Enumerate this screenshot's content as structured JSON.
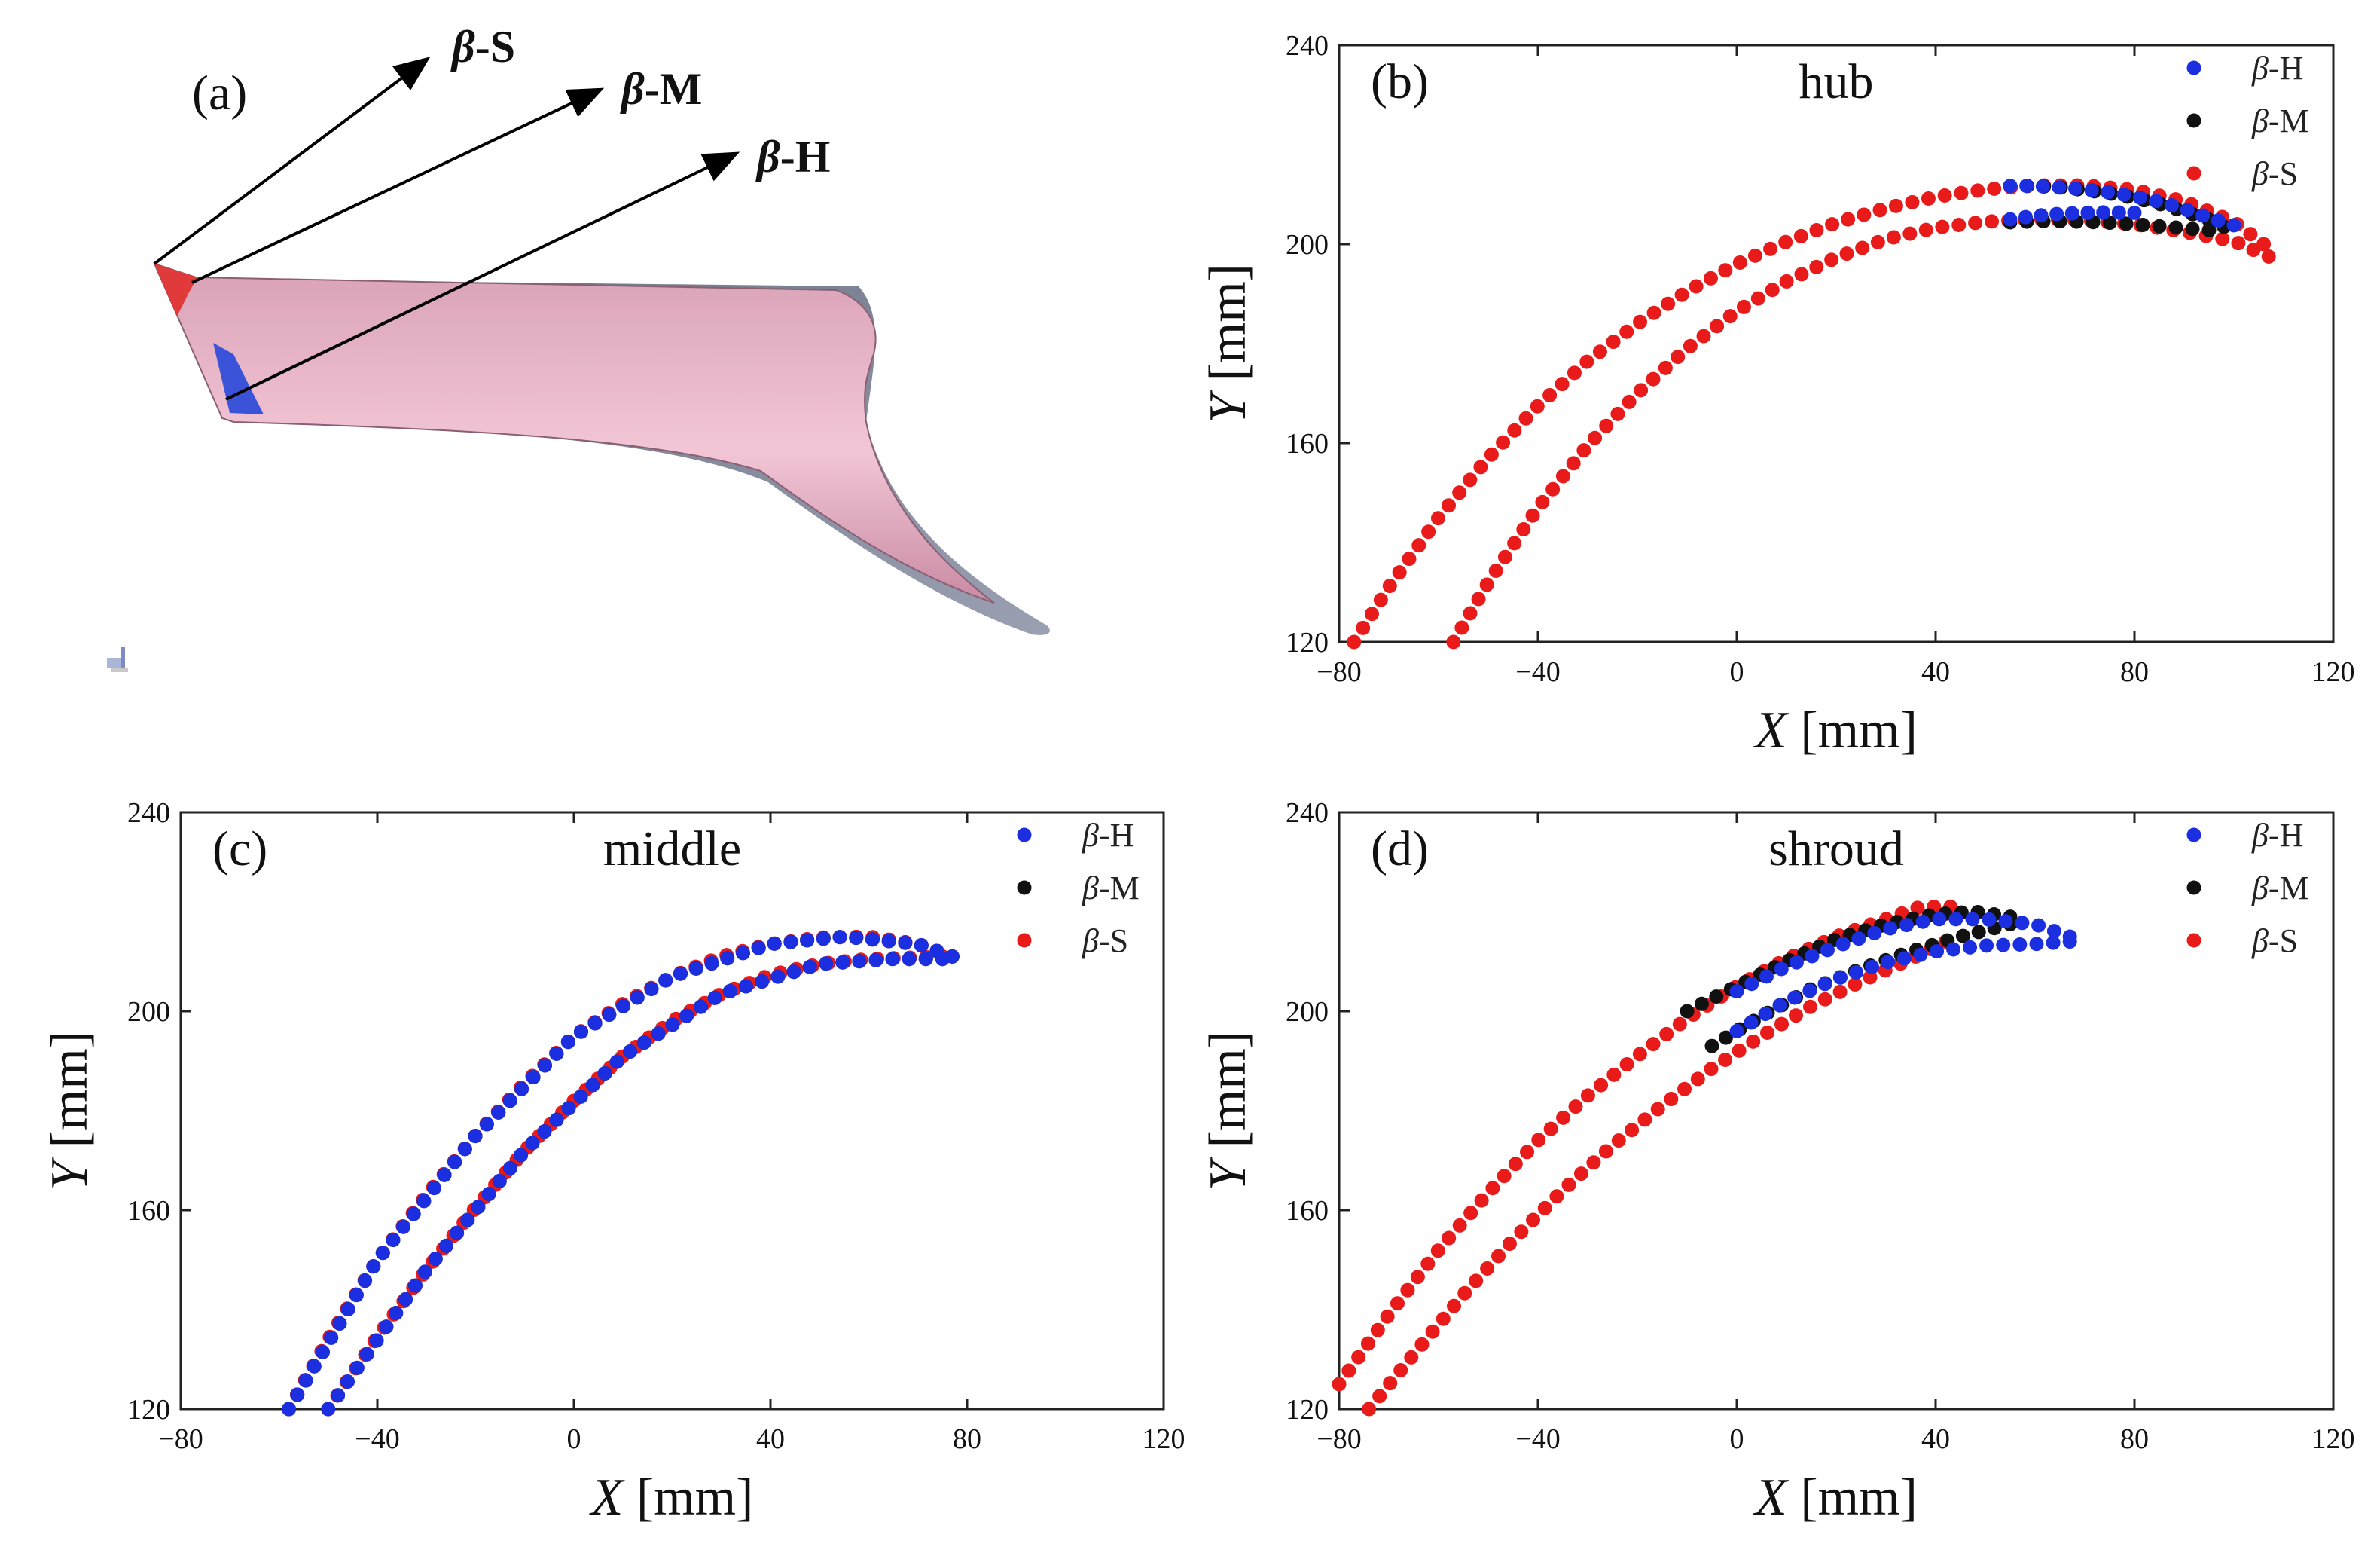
{
  "figure": {
    "panel_a": {
      "label": "(a)",
      "arrows": [
        {
          "greek": "β",
          "suffix": "-S"
        },
        {
          "greek": "β",
          "suffix": "-M"
        },
        {
          "greek": "β",
          "suffix": "-H"
        }
      ]
    }
  },
  "colors": {
    "H": "#1c2fe0",
    "M": "#111111",
    "S": "#e81a1a"
  },
  "chart_data": [
    {
      "type": "scatter",
      "panel": "(b)",
      "title": "hub",
      "xlabel": {
        "var": "X",
        "unit": " [mm]"
      },
      "ylabel": {
        "var": "Y",
        "unit": " [mm]"
      },
      "xlim": [
        -80,
        120
      ],
      "ylim": [
        120,
        240
      ],
      "xticks": [
        "−80",
        "−40",
        "0",
        "40",
        "80",
        "120"
      ],
      "yticks": [
        "120",
        "160",
        "200",
        "240"
      ],
      "legend_position": "top-right",
      "series": [
        {
          "name": "H",
          "greek": "β",
          "suffix": "-H",
          "color": "#1c2fe0",
          "suction": [
            [
              55,
              211.7
            ],
            [
              60,
              211.7
            ],
            [
              65,
              211.4
            ],
            [
              70,
              211.0
            ],
            [
              75,
              210.4
            ],
            [
              80,
              209.6
            ],
            [
              85,
              208.5
            ],
            [
              90,
              207.1
            ],
            [
              95,
              205.3
            ],
            [
              100,
              203.8
            ]
          ],
          "pressure": [
            [
              55,
              205.0
            ],
            [
              60,
              205.7
            ],
            [
              65,
              206.1
            ],
            [
              70,
              206.3
            ],
            [
              75,
              206.4
            ],
            [
              80,
              206.3
            ]
          ]
        },
        {
          "name": "M",
          "greek": "β",
          "suffix": "-M",
          "color": "#111111",
          "suction": [
            [
              55,
              211.7
            ],
            [
              60,
              211.7
            ],
            [
              65,
              211.4
            ],
            [
              70,
              210.9
            ],
            [
              75,
              210.2
            ],
            [
              80,
              209.3
            ],
            [
              85,
              208.1
            ],
            [
              90,
              206.6
            ],
            [
              95,
              204.9
            ],
            [
              98,
              203.5
            ]
          ],
          "pressure": [
            [
              55,
              204.4
            ],
            [
              60,
              204.6
            ],
            [
              65,
              204.6
            ],
            [
              70,
              204.5
            ],
            [
              75,
              204.3
            ],
            [
              80,
              204.0
            ],
            [
              85,
              203.6
            ],
            [
              90,
              203.2
            ],
            [
              95,
              202.8
            ]
          ]
        },
        {
          "name": "S",
          "greek": "β",
          "suffix": "-S",
          "color": "#e81a1a",
          "suction": [
            [
              -77,
              120
            ],
            [
              -70,
              131
            ],
            [
              -60,
              145
            ],
            [
              -50,
              157
            ],
            [
              -40,
              167.5
            ],
            [
              -30,
              176.5
            ],
            [
              -20,
              184
            ],
            [
              -10,
              190.5
            ],
            [
              0,
              196
            ],
            [
              10,
              200.5
            ],
            [
              20,
              204.3
            ],
            [
              30,
              207.2
            ],
            [
              40,
              209.5
            ],
            [
              50,
              211.0
            ],
            [
              60,
              211.8
            ],
            [
              70,
              211.8
            ],
            [
              80,
              210.9
            ],
            [
              90,
              208.6
            ],
            [
              100,
              204.5
            ],
            [
              106,
              200.0
            ]
          ],
          "pressure": [
            [
              -57,
              120
            ],
            [
              -50,
              132
            ],
            [
              -40,
              147
            ],
            [
              -30,
              159.5
            ],
            [
              -20,
              170
            ],
            [
              -10,
              179
            ],
            [
              0,
              186.5
            ],
            [
              10,
              192.5
            ],
            [
              20,
              197.3
            ],
            [
              30,
              201.0
            ],
            [
              40,
              203.3
            ],
            [
              50,
              204.5
            ],
            [
              60,
              205.0
            ],
            [
              70,
              204.8
            ],
            [
              80,
              204.0
            ],
            [
              90,
              202.5
            ],
            [
              100,
              200.6
            ],
            [
              107,
              197.5
            ]
          ]
        }
      ]
    },
    {
      "type": "scatter",
      "panel": "(c)",
      "title": "middle",
      "xlabel": {
        "var": "X",
        "unit": " [mm]"
      },
      "ylabel": {
        "var": "Y",
        "unit": " [mm]"
      },
      "xlim": [
        -80,
        120
      ],
      "ylim": [
        120,
        240
      ],
      "xticks": [
        "−80",
        "−40",
        "0",
        "40",
        "80",
        "120"
      ],
      "yticks": [
        "120",
        "160",
        "200",
        "240"
      ],
      "legend_position": "top-right",
      "series": [
        {
          "name": "H",
          "greek": "β",
          "suffix": "-H",
          "color": "#1c2fe0",
          "suction": [
            [
              -58,
              120
            ],
            [
              -40,
              150
            ],
            [
              -20,
              175
            ],
            [
              0,
              195
            ],
            [
              20,
              207
            ],
            [
              40,
              213.5
            ],
            [
              55,
              215
            ],
            [
              70,
              213.5
            ],
            [
              77,
              211
            ]
          ],
          "pressure": [
            [
              -50,
              120
            ],
            [
              -30,
              148
            ],
            [
              -10,
              172
            ],
            [
              10,
              191
            ],
            [
              30,
              203.5
            ],
            [
              50,
              209.5
            ],
            [
              65,
              210.5
            ],
            [
              75,
              210.5
            ]
          ]
        },
        {
          "name": "M",
          "greek": "β",
          "suffix": "-M",
          "color": "#111111",
          "suction": [
            [
              -58,
              120
            ],
            [
              -40,
              150
            ],
            [
              -20,
              175
            ],
            [
              0,
              195
            ],
            [
              20,
              207
            ],
            [
              40,
              213.5
            ],
            [
              55,
              215
            ],
            [
              70,
              213.5
            ],
            [
              77,
              211
            ]
          ],
          "pressure": [
            [
              -50,
              120
            ],
            [
              -30,
              148
            ],
            [
              -10,
              172
            ],
            [
              10,
              191
            ],
            [
              30,
              203.5
            ],
            [
              50,
              209.5
            ],
            [
              65,
              210.5
            ],
            [
              75,
              210.5
            ]
          ]
        },
        {
          "name": "S",
          "greek": "β",
          "suffix": "-S",
          "color": "#e81a1a",
          "suction": [
            [
              -58,
              120
            ],
            [
              -50,
              134
            ],
            [
              -40,
              150
            ],
            [
              -30,
              163
            ],
            [
              -20,
              175
            ],
            [
              -10,
              185.5
            ],
            [
              0,
              195
            ],
            [
              10,
              201.5
            ],
            [
              20,
              207
            ],
            [
              30,
              211
            ],
            [
              40,
              213.5
            ],
            [
              50,
              214.8
            ],
            [
              60,
              215
            ],
            [
              70,
              213.5
            ],
            [
              77,
              211
            ]
          ],
          "pressure": [
            [
              -50,
              120
            ],
            [
              -40,
              134.5
            ],
            [
              -30,
              148
            ],
            [
              -20,
              160.5
            ],
            [
              -10,
              172
            ],
            [
              0,
              182
            ],
            [
              10,
              191
            ],
            [
              20,
              198
            ],
            [
              30,
              203.5
            ],
            [
              40,
              207.3
            ],
            [
              50,
              209.5
            ],
            [
              60,
              210.5
            ],
            [
              70,
              210.8
            ],
            [
              75,
              211
            ]
          ]
        }
      ]
    },
    {
      "type": "scatter",
      "panel": "(d)",
      "title": "shroud",
      "xlabel": {
        "var": "X",
        "unit": " [mm]"
      },
      "ylabel": {
        "var": "Y",
        "unit": " [mm]"
      },
      "xlim": [
        -80,
        120
      ],
      "ylim": [
        120,
        240
      ],
      "xticks": [
        "−80",
        "−40",
        "0",
        "40",
        "80",
        "120"
      ],
      "yticks": [
        "120",
        "160",
        "200",
        "240"
      ],
      "legend_position": "top-right",
      "series": [
        {
          "name": "H",
          "greek": "β",
          "suffix": "-H",
          "color": "#1c2fe0",
          "suction": [
            [
              0,
              204
            ],
            [
              10,
              209
            ],
            [
              20,
              213
            ],
            [
              30,
              216.5
            ],
            [
              40,
              218.5
            ],
            [
              50,
              218.5
            ],
            [
              60,
              217.5
            ],
            [
              67,
              215
            ]
          ],
          "pressure": [
            [
              0,
              196
            ],
            [
              10,
              202
            ],
            [
              20,
              206.5
            ],
            [
              30,
              209.8
            ],
            [
              40,
              212
            ],
            [
              50,
              213.2
            ],
            [
              60,
              213.5
            ],
            [
              67,
              214
            ]
          ]
        },
        {
          "name": "M",
          "greek": "β",
          "suffix": "-M",
          "color": "#111111",
          "suction": [
            [
              -10,
              200
            ],
            [
              0,
              205
            ],
            [
              10,
              210
            ],
            [
              20,
              214.5
            ],
            [
              30,
              217.5
            ],
            [
              40,
              219.5
            ],
            [
              48,
              220
            ],
            [
              55,
              219
            ]
          ],
          "pressure": [
            [
              -5,
              193
            ],
            [
              5,
              199
            ],
            [
              15,
              204.5
            ],
            [
              25,
              208.5
            ],
            [
              35,
              212
            ],
            [
              45,
              215
            ],
            [
              55,
              217.5
            ]
          ]
        },
        {
          "name": "S",
          "greek": "β",
          "suffix": "-S",
          "color": "#e81a1a",
          "suction": [
            [
              -80,
              125
            ],
            [
              -70,
              139
            ],
            [
              -60,
              152
            ],
            [
              -50,
              163.5
            ],
            [
              -40,
              174
            ],
            [
              -30,
              183
            ],
            [
              -20,
              191
            ],
            [
              -10,
              198.5
            ],
            [
              0,
              205
            ],
            [
              10,
              210.5
            ],
            [
              20,
              215
            ],
            [
              30,
              218.5
            ],
            [
              37,
              221
            ],
            [
              43,
              221
            ]
          ],
          "pressure": [
            [
              -74,
              120
            ],
            [
              -65,
              131
            ],
            [
              -55,
              143
            ],
            [
              -45,
              154
            ],
            [
              -35,
              164
            ],
            [
              -25,
              173
            ],
            [
              -15,
              181
            ],
            [
              -5,
              188.5
            ],
            [
              5,
              195
            ],
            [
              15,
              201
            ],
            [
              25,
              206
            ],
            [
              35,
              210.5
            ],
            [
              42,
              214
            ]
          ]
        }
      ]
    }
  ]
}
